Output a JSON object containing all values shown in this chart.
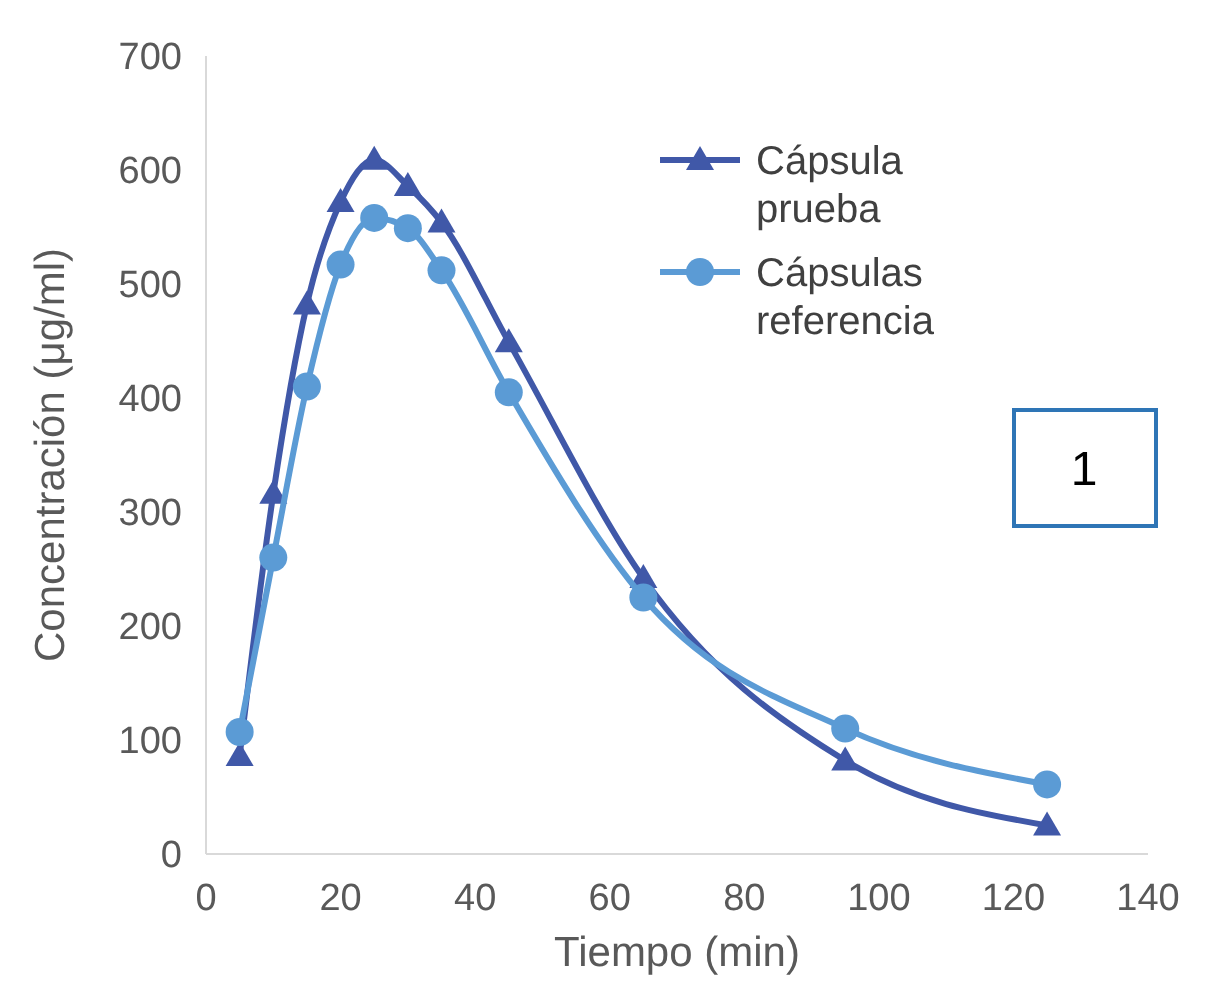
{
  "chart_data": {
    "type": "line",
    "xlabel": "Tiempo (min)",
    "ylabel": "Concentración (μg/ml)",
    "xlim": [
      0,
      140
    ],
    "xticks": [
      0,
      20,
      40,
      60,
      80,
      100,
      120,
      140
    ],
    "ylim": [
      0,
      700
    ],
    "yticks": [
      0,
      100,
      200,
      300,
      400,
      500,
      600,
      700
    ],
    "grid": false,
    "legend": "top right",
    "annotations": [
      "1"
    ],
    "series": [
      {
        "name": "Cápsula prueba",
        "color": "#4058a8",
        "marker": "triangle",
        "x": [
          5,
          10,
          15,
          20,
          25,
          30,
          35,
          45,
          65,
          95,
          125
        ],
        "values": [
          86,
          316,
          482,
          572,
          609,
          586,
          554,
          449,
          242,
          82,
          25
        ]
      },
      {
        "name": "Cápsulas referencia",
        "color": "#5b9bd5",
        "marker": "circle",
        "x": [
          5,
          10,
          15,
          20,
          25,
          30,
          35,
          45,
          65,
          95,
          125
        ],
        "values": [
          107,
          260,
          410,
          517,
          558,
          549,
          512,
          405,
          225,
          110,
          61
        ]
      }
    ]
  }
}
